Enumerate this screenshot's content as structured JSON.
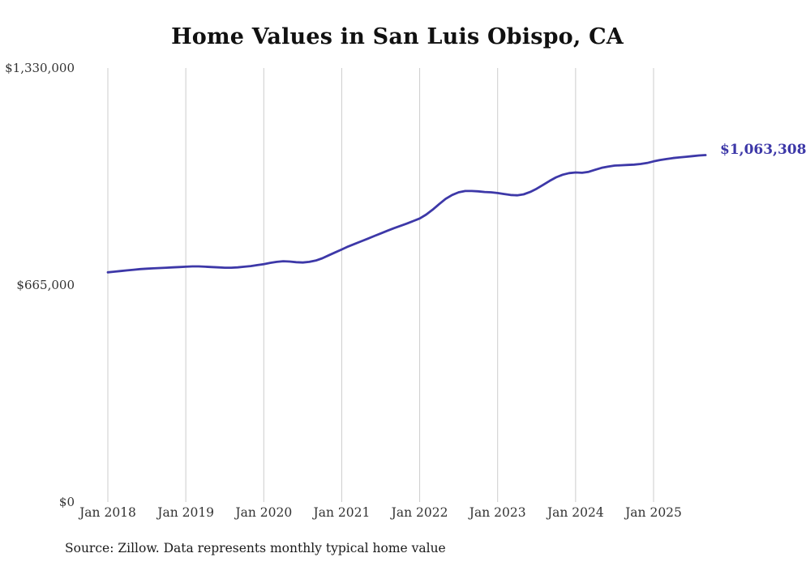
{
  "title": "Home Values in San Luis Obispo, CA",
  "source": "Source: Zillow. Data represents monthly typical home value",
  "end_label": "$1,063,308",
  "colors": {
    "line": "#3d38a8",
    "grid": "#cccccc",
    "title_text": "#111111",
    "tick_text": "#333333"
  },
  "chart_data": {
    "type": "line",
    "title": "Home Values in San Luis Obispo, CA",
    "xlabel": "",
    "ylabel": "",
    "ylim": [
      0,
      1330000
    ],
    "grid": "vertical-only",
    "legend": "none",
    "x_start_month": "Jan 2018",
    "x_end_month": "Sep 2025",
    "x_tick_labels": [
      "Jan 2018",
      "Jan 2019",
      "Jan 2020",
      "Jan 2021",
      "Jan 2022",
      "Jan 2023",
      "Jan 2024",
      "Jan 2025"
    ],
    "y_tick_labels": [
      "$0",
      "$665,000",
      "$1,330,000"
    ],
    "y_tick_values": [
      0,
      665000,
      1330000
    ],
    "series": [
      {
        "name": "Monthly typical home value",
        "final_value": 1063308,
        "values": [
          704000,
          706000,
          708000,
          710000,
          712000,
          714000,
          715000,
          716000,
          717000,
          718000,
          719000,
          720000,
          721000,
          722000,
          722000,
          721000,
          720000,
          719000,
          718000,
          718000,
          719000,
          721000,
          723000,
          726000,
          729000,
          733000,
          736000,
          738000,
          737000,
          735000,
          734000,
          736000,
          740000,
          747000,
          756000,
          765000,
          774000,
          783000,
          791000,
          799000,
          807000,
          815000,
          823000,
          831000,
          839000,
          846000,
          853000,
          861000,
          869000,
          881000,
          896000,
          913000,
          929000,
          941000,
          949000,
          953000,
          953000,
          952000,
          950000,
          949000,
          947000,
          944000,
          941000,
          940000,
          943000,
          950000,
          960000,
          972000,
          984000,
          995000,
          1003000,
          1008000,
          1010000,
          1009000,
          1012000,
          1018000,
          1024000,
          1028000,
          1031000,
          1032000,
          1033000,
          1034000,
          1036000,
          1039000,
          1044000,
          1048000,
          1051000,
          1054000,
          1056000,
          1058000,
          1060000,
          1062000,
          1063308
        ]
      }
    ]
  }
}
